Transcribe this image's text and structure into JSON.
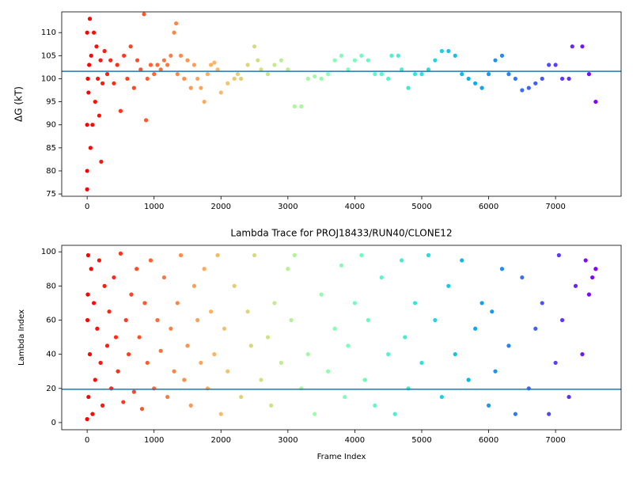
{
  "chart_data": [
    {
      "type": "scatter",
      "ylabel": "ΔG (kT)",
      "colormap": "rainbow_r",
      "x": [
        0,
        0,
        0,
        0,
        10,
        20,
        30,
        40,
        50,
        60,
        80,
        100,
        120,
        140,
        160,
        180,
        200,
        210,
        230,
        260,
        300,
        350,
        400,
        450,
        500,
        550,
        600,
        650,
        700,
        750,
        800,
        850,
        880,
        900,
        950,
        1000,
        1050,
        1100,
        1150,
        1200,
        1250,
        1300,
        1330,
        1350,
        1400,
        1450,
        1500,
        1550,
        1600,
        1650,
        1700,
        1750,
        1800,
        1850,
        1900,
        1950,
        2000,
        2100,
        2200,
        2250,
        2300,
        2400,
        2500,
        2550,
        2600,
        2700,
        2800,
        2900,
        3000,
        3100,
        3200,
        3300,
        3400,
        3500,
        3600,
        3700,
        3800,
        3900,
        4000,
        4100,
        4200,
        4300,
        4400,
        4500,
        4550,
        4650,
        4700,
        4800,
        4900,
        5000,
        5100,
        5200,
        5300,
        5400,
        5500,
        5600,
        5700,
        5800,
        5900,
        6000,
        6100,
        6200,
        6300,
        6400,
        6500,
        6600,
        6700,
        6800,
        6900,
        7000,
        7100,
        7200,
        7250,
        7400,
        7500,
        7600
      ],
      "values": [
        76,
        80,
        90,
        110,
        100,
        97,
        103,
        113,
        85,
        105,
        90,
        110,
        95,
        107,
        100,
        92,
        104,
        82,
        99,
        106,
        101,
        104,
        99,
        103,
        93,
        105,
        100,
        107,
        98,
        104,
        102,
        114,
        91,
        100,
        103,
        101,
        103,
        102,
        104,
        103,
        105,
        110,
        112,
        101,
        105,
        100,
        104,
        98,
        103,
        100,
        98,
        95,
        101,
        103,
        103.5,
        102,
        97,
        99,
        100,
        101,
        100,
        103,
        107,
        104,
        102,
        101,
        103,
        104,
        102,
        94,
        94,
        100,
        100.5,
        100,
        101,
        104,
        105,
        102,
        104,
        105,
        104,
        101,
        101,
        100,
        105,
        105,
        102,
        98,
        101,
        101,
        102,
        104,
        106,
        106,
        105,
        101,
        100,
        99,
        98,
        101,
        104,
        105,
        101,
        100,
        97.5,
        98,
        99,
        100,
        103,
        103,
        100,
        100,
        107,
        107,
        101,
        95
      ],
      "hline": {
        "value": 101.6,
        "color": "#1f77b4"
      },
      "xlim": [
        -380,
        7980
      ],
      "ylim": [
        74.5,
        114.5
      ],
      "xticks": [
        0,
        1000,
        2000,
        3000,
        4000,
        5000,
        6000,
        7000
      ],
      "yticks": [
        75,
        80,
        85,
        90,
        95,
        100,
        105,
        110
      ]
    },
    {
      "type": "scatter",
      "title": "Lambda Trace for PROJ18433/RUN40/CLONE12",
      "xlabel": "Frame Index",
      "ylabel": "Lambda Index",
      "colormap": "rainbow_r",
      "x": [
        0,
        5,
        10,
        15,
        20,
        40,
        60,
        80,
        100,
        120,
        150,
        180,
        200,
        230,
        260,
        300,
        330,
        360,
        400,
        430,
        460,
        500,
        540,
        580,
        620,
        660,
        700,
        740,
        780,
        820,
        860,
        900,
        950,
        1000,
        1050,
        1100,
        1150,
        1200,
        1250,
        1300,
        1350,
        1400,
        1450,
        1500,
        1550,
        1600,
        1650,
        1700,
        1750,
        1800,
        1850,
        1900,
        1950,
        2000,
        2050,
        2100,
        2200,
        2300,
        2400,
        2450,
        2500,
        2600,
        2700,
        2750,
        2800,
        2900,
        3000,
        3050,
        3100,
        3200,
        3300,
        3400,
        3500,
        3600,
        3700,
        3800,
        3850,
        3900,
        4000,
        4100,
        4150,
        4200,
        4300,
        4400,
        4500,
        4600,
        4700,
        4750,
        4800,
        4900,
        5000,
        5100,
        5200,
        5300,
        5400,
        5500,
        5600,
        5700,
        5800,
        5900,
        6000,
        6050,
        6100,
        6200,
        6300,
        6400,
        6500,
        6600,
        6700,
        6800,
        6900,
        7000,
        7050,
        7100,
        7200,
        7300,
        7400,
        7450,
        7500,
        7550,
        7600
      ],
      "values": [
        2,
        60,
        75,
        98,
        15,
        40,
        90,
        5,
        70,
        25,
        55,
        95,
        35,
        10,
        80,
        45,
        65,
        20,
        85,
        50,
        30,
        99,
        12,
        60,
        40,
        75,
        18,
        90,
        50,
        8,
        70,
        35,
        95,
        20,
        60,
        42,
        85,
        15,
        55,
        30,
        70,
        98,
        25,
        45,
        10,
        80,
        60,
        35,
        90,
        20,
        65,
        40,
        98,
        5,
        55,
        30,
        80,
        15,
        65,
        45,
        98,
        25,
        50,
        10,
        70,
        35,
        90,
        60,
        98,
        20,
        40,
        5,
        75,
        30,
        55,
        92,
        15,
        45,
        70,
        98,
        25,
        60,
        10,
        85,
        40,
        5,
        95,
        50,
        20,
        70,
        35,
        98,
        60,
        15,
        80,
        40,
        95,
        25,
        55,
        70,
        10,
        65,
        30,
        90,
        45,
        5,
        85,
        20,
        55,
        70,
        5,
        35,
        98,
        60,
        15,
        80,
        40,
        95,
        75,
        85,
        90
      ],
      "hline": {
        "value": 19.5,
        "color": "#1f77b4"
      },
      "xlim": [
        -380,
        7980
      ],
      "ylim": [
        -4.2,
        103.8
      ],
      "xticks": [
        0,
        1000,
        2000,
        3000,
        4000,
        5000,
        6000,
        7000
      ],
      "yticks": [
        0,
        20,
        40,
        60,
        80,
        100
      ]
    }
  ]
}
